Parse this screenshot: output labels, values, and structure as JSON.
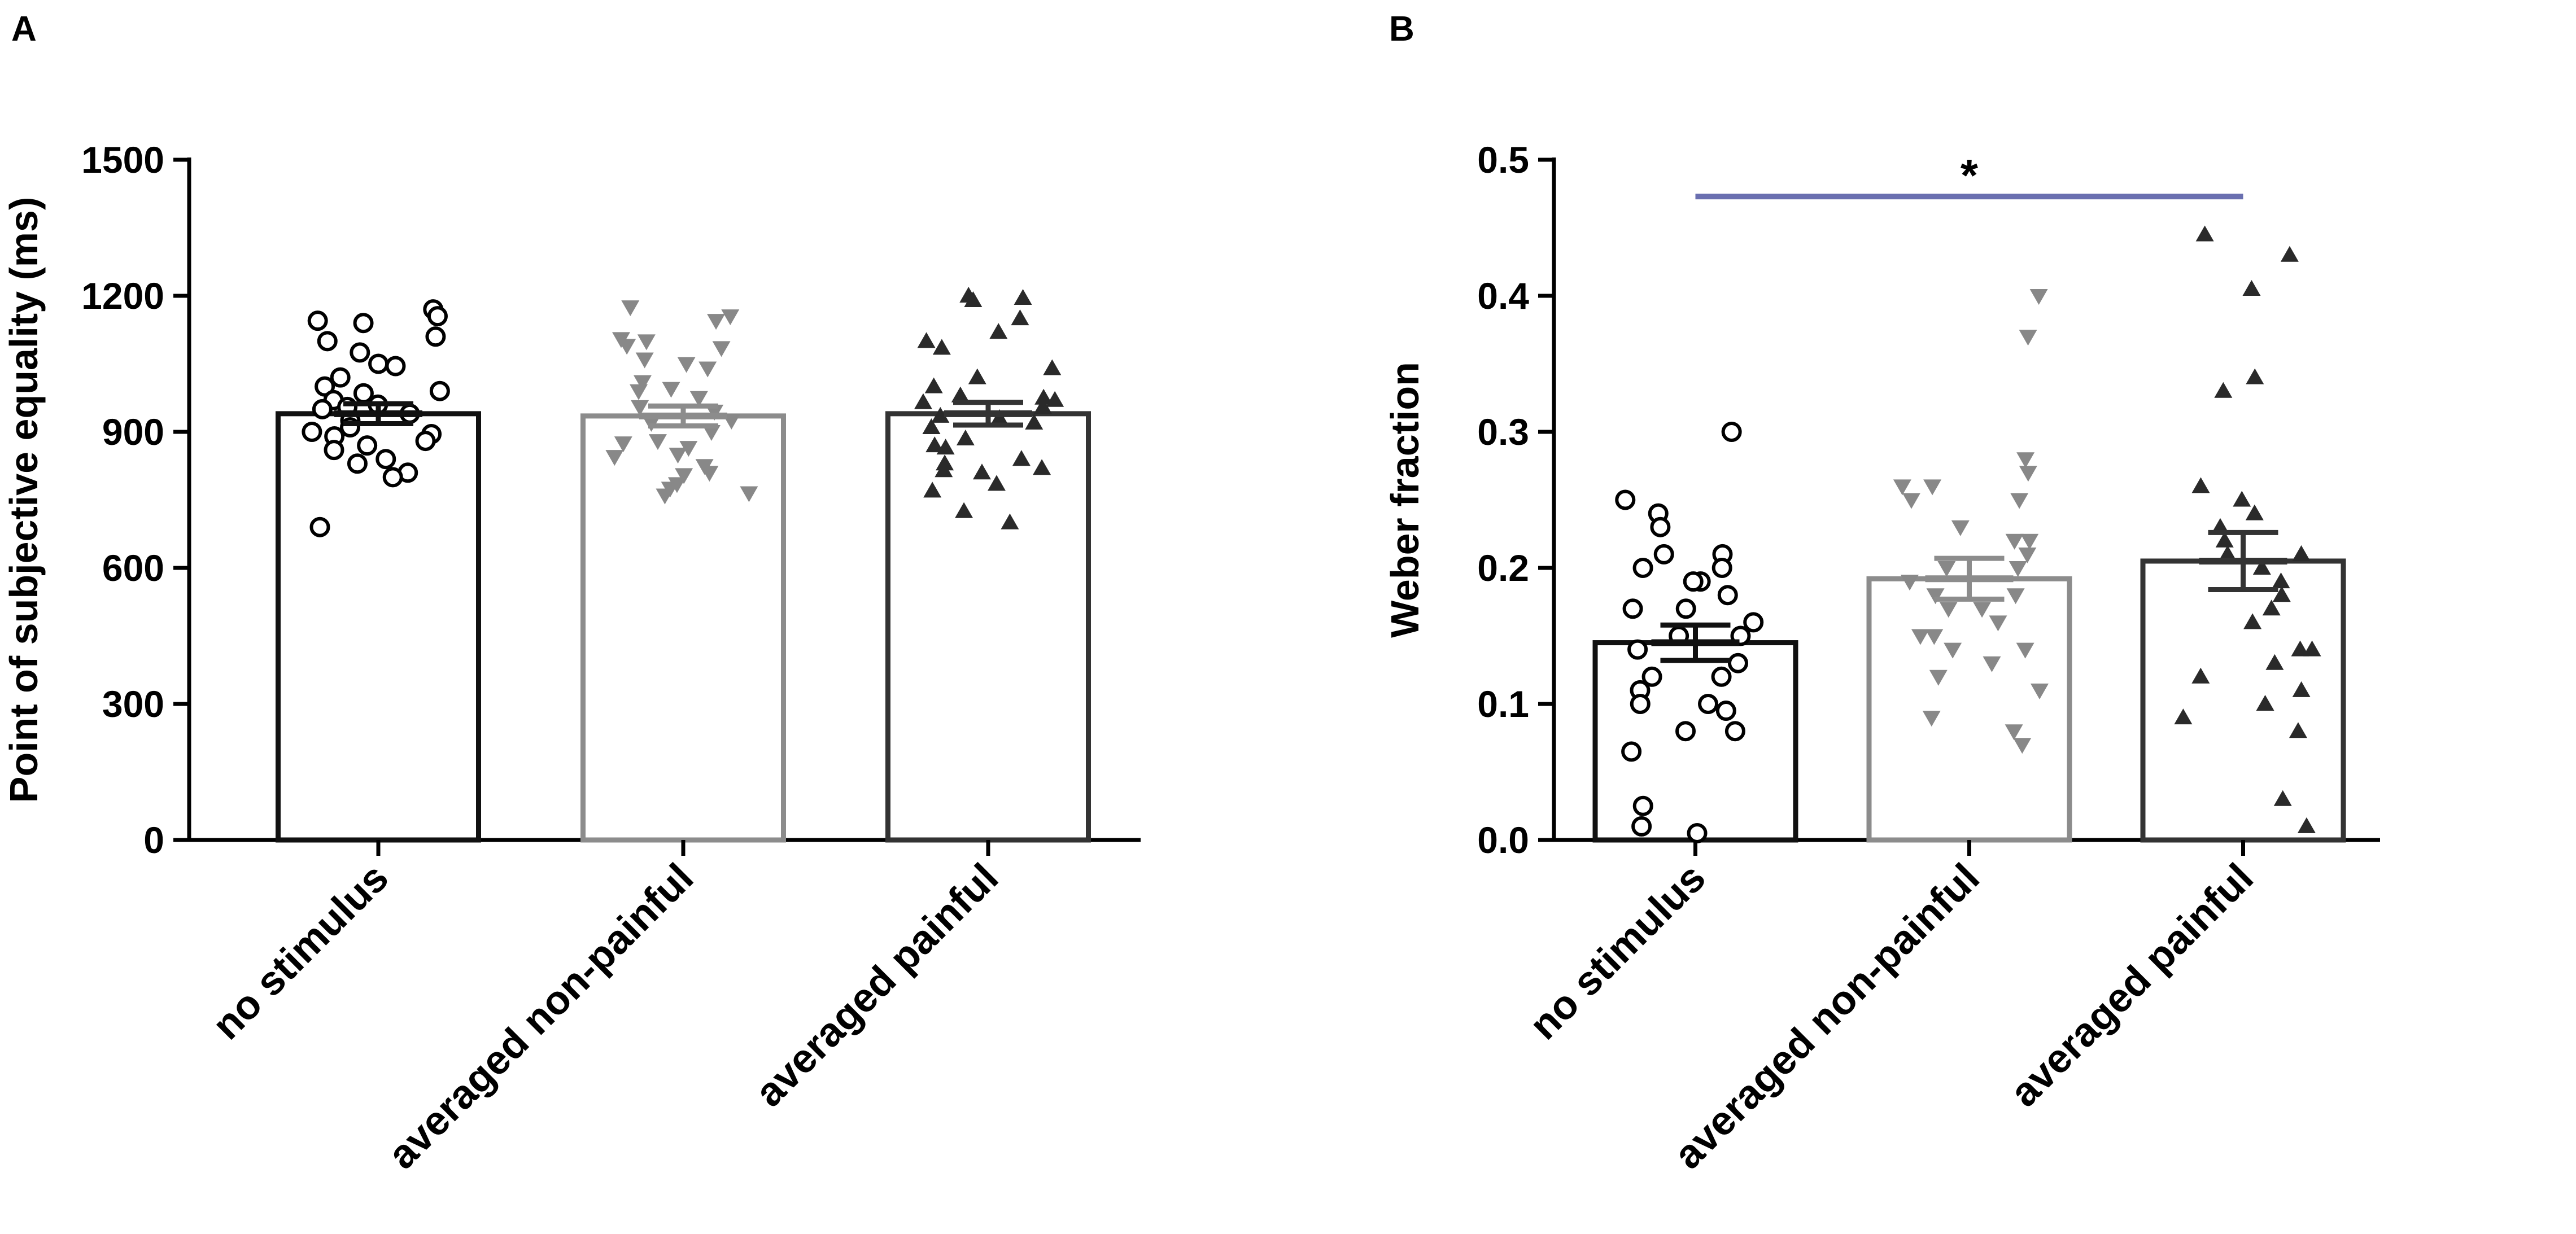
{
  "chart_data": [
    {
      "panel_label": "A",
      "type": "bar",
      "title": "",
      "xlabel": "",
      "ylabel": "Point of subjective equality (ms)",
      "ylim": [
        0,
        1500
      ],
      "yticks": [
        0,
        300,
        600,
        900,
        1200,
        1500
      ],
      "ytick_labels": [
        "0",
        "300",
        "600",
        "900",
        "1200",
        "1500"
      ],
      "categories": [
        "no stimulus",
        "averaged non-painful",
        "averaged painful"
      ],
      "values": [
        940,
        935,
        940
      ],
      "sem": [
        22,
        22,
        25
      ],
      "bar_colors": [
        "#111111",
        "#8c8c8c",
        "#333333"
      ],
      "marker_shapes": [
        "circle",
        "triangle-down",
        "triangle-up"
      ],
      "points": [
        [
          1170,
          1155,
          1145,
          1140,
          1110,
          1100,
          1075,
          1050,
          1045,
          1020,
          1000,
          990,
          985,
          970,
          960,
          955,
          950,
          940,
          925,
          910,
          900,
          895,
          890,
          880,
          870,
          860,
          840,
          830,
          810,
          800,
          690
        ],
        [
          1175,
          1155,
          1145,
          1105,
          1100,
          1090,
          1085,
          1060,
          1050,
          1040,
          1010,
          995,
          990,
          975,
          955,
          945,
          925,
          920,
          900,
          880,
          875,
          865,
          850,
          845,
          825,
          810,
          805,
          785,
          775,
          765,
          760
        ],
        [
          1200,
          1195,
          1190,
          1150,
          1120,
          1100,
          1085,
          1040,
          1020,
          1000,
          980,
          975,
          970,
          965,
          955,
          935,
          930,
          920,
          910,
          885,
          870,
          865,
          840,
          830,
          820,
          815,
          810,
          785,
          770,
          725,
          700
        ]
      ],
      "significance": []
    },
    {
      "panel_label": "B",
      "type": "bar",
      "title": "",
      "xlabel": "",
      "ylabel": "Weber fraction",
      "ylim": [
        0,
        0.5
      ],
      "yticks": [
        0,
        0.1,
        0.2,
        0.3,
        0.4,
        0.5
      ],
      "ytick_labels": [
        "0.0",
        "0.1",
        "0.2",
        "0.3",
        "0.4",
        "0.5"
      ],
      "categories": [
        "no stimulus",
        "averaged non-painful",
        "averaged painful"
      ],
      "values": [
        0.145,
        0.192,
        0.205
      ],
      "sem": [
        0.013,
        0.015,
        0.021
      ],
      "bar_colors": [
        "#111111",
        "#8c8c8c",
        "#333333"
      ],
      "marker_shapes": [
        "circle",
        "triangle-down",
        "triangle-up"
      ],
      "points": [
        [
          0.3,
          0.25,
          0.24,
          0.23,
          0.21,
          0.21,
          0.2,
          0.2,
          0.19,
          0.19,
          0.18,
          0.17,
          0.17,
          0.16,
          0.15,
          0.15,
          0.14,
          0.13,
          0.12,
          0.12,
          0.11,
          0.1,
          0.1,
          0.095,
          0.08,
          0.08,
          0.065,
          0.025,
          0.01,
          0.005
        ],
        [
          0.4,
          0.37,
          0.28,
          0.27,
          0.26,
          0.26,
          0.25,
          0.25,
          0.23,
          0.22,
          0.22,
          0.21,
          0.2,
          0.2,
          0.19,
          0.18,
          0.18,
          0.17,
          0.17,
          0.16,
          0.15,
          0.15,
          0.14,
          0.14,
          0.13,
          0.12,
          0.11,
          0.09,
          0.08,
          0.07
        ],
        [
          0.445,
          0.43,
          0.405,
          0.34,
          0.33,
          0.26,
          0.25,
          0.24,
          0.23,
          0.22,
          0.21,
          0.21,
          0.2,
          0.19,
          0.18,
          0.17,
          0.16,
          0.14,
          0.14,
          0.13,
          0.12,
          0.11,
          0.1,
          0.09,
          0.08,
          0.03,
          0.01
        ]
      ],
      "significance": [
        {
          "from": 0,
          "to": 2,
          "label": "*",
          "y": 0.473,
          "color": "#6a6fb0"
        }
      ]
    }
  ]
}
